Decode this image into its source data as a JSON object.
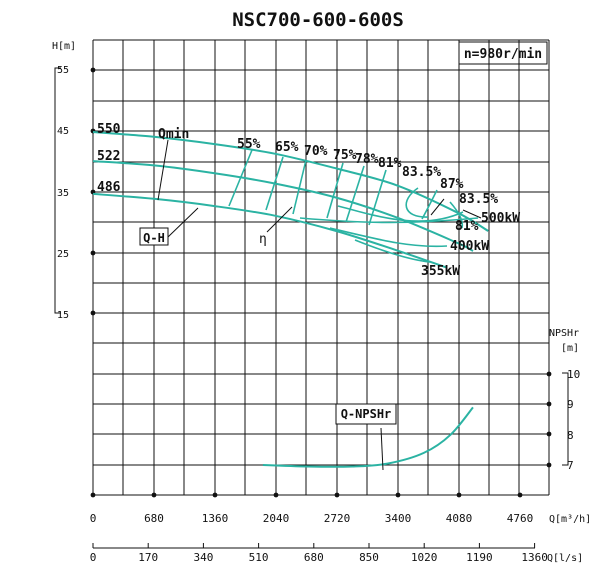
{
  "chart_data": {
    "type": "line",
    "title": "NSC700-600-600S",
    "speed_label": "n=980r/min",
    "xlabel": "Q[m³/h]",
    "xlabel2": "Q[l/s]",
    "ylabel_head": "H[m]",
    "ylabel_npsh": "NPSHr",
    "ylabel_npsh_unit": "[m]",
    "x_ticks": [
      "0",
      "680",
      "1360",
      "2040",
      "2720",
      "3400",
      "4080",
      "4760"
    ],
    "x2_ticks": [
      "0",
      "170",
      "340",
      "510",
      "680",
      "850",
      "1020",
      "1190",
      "1360"
    ],
    "y_head_ticks": [
      "55",
      "45",
      "35",
      "25",
      "15"
    ],
    "y_npsh_ticks": [
      "10",
      "9",
      "8",
      "7"
    ],
    "xlim": [
      0,
      5100
    ],
    "head_ylim": [
      15,
      55
    ],
    "npsh_ylim": [
      7,
      10
    ],
    "grid": true,
    "impeller_labels": [
      "550",
      "522",
      "486"
    ],
    "efficiency_labels": [
      "55%",
      "65%",
      "70%",
      "75%",
      "78%",
      "81%",
      "83.5%",
      "87%",
      "83.5%",
      "81%"
    ],
    "power_labels": [
      "500kW",
      "400kW",
      "355kW"
    ],
    "annotations": {
      "qmin": "Qmin",
      "qh": "Q-H",
      "eta": "η",
      "npsh": "Q-NPSHr"
    },
    "series": [
      {
        "name": "550",
        "x": [
          0,
          680,
          1360,
          2040,
          2720,
          3400,
          4080,
          4420
        ],
        "y": [
          44.8,
          44,
          42.8,
          41.2,
          38.8,
          36,
          31.5,
          28.5
        ]
      },
      {
        "name": "522",
        "x": [
          0,
          680,
          1360,
          2040,
          2720,
          3400,
          4080,
          4250
        ],
        "y": [
          40,
          39.3,
          38,
          36.3,
          34,
          30.7,
          26.5,
          25.2
        ]
      },
      {
        "name": "486",
        "x": [
          0,
          680,
          1360,
          2040,
          2720,
          3400,
          3950
        ],
        "y": [
          34.6,
          33.8,
          32.6,
          31,
          28.5,
          25.3,
          22.5
        ]
      },
      {
        "name": "Q-NPSHr",
        "x": [
          1900,
          2400,
          2900,
          3300,
          3700,
          4000,
          4250
        ],
        "y": [
          7.0,
          6.95,
          6.95,
          7.05,
          7.4,
          8.0,
          8.9
        ]
      }
    ]
  }
}
